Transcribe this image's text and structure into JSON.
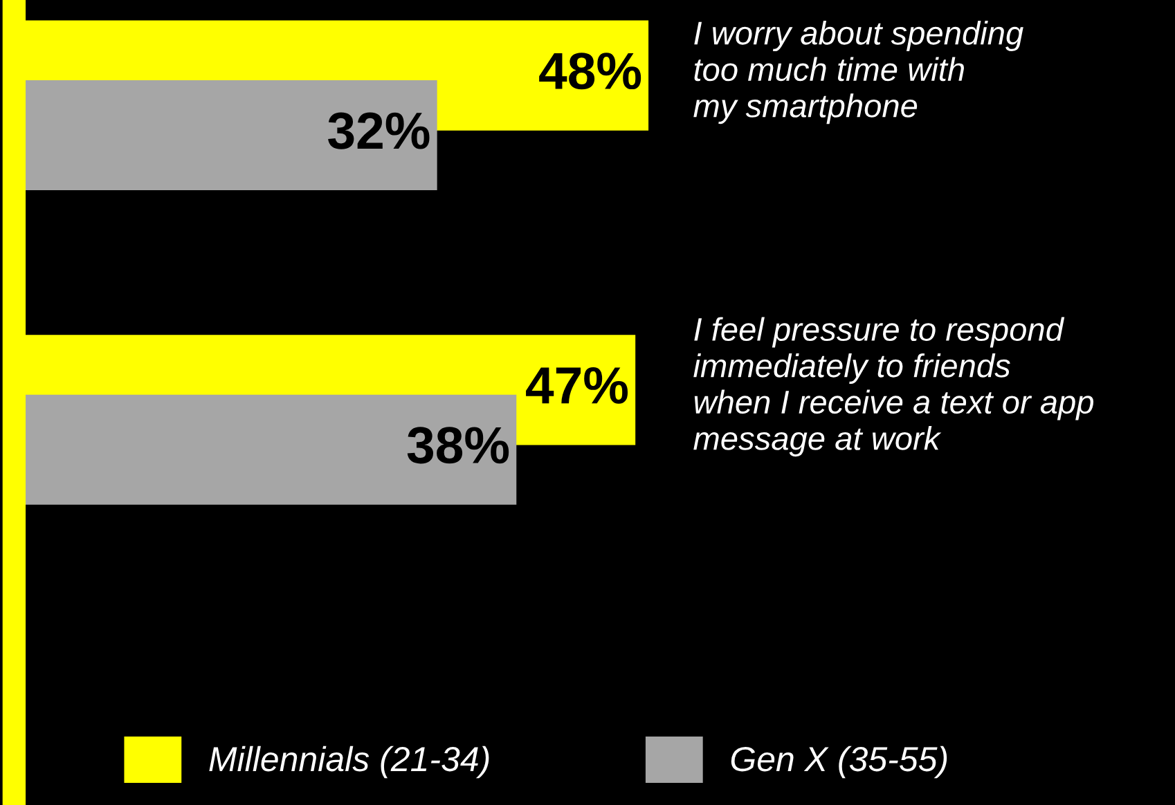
{
  "chart_data": {
    "type": "bar",
    "orientation": "horizontal",
    "categories": [
      "I worry about spending\ntoo much time with\nmy smartphone",
      "I feel pressure to respond\nimmediately to friends\nwhen I receive a text or app\nmessage at work"
    ],
    "series": [
      {
        "name": "Millennials (21-34)",
        "color": "#ffff00",
        "values": [
          48,
          47
        ],
        "value_labels": [
          "48%",
          "47%"
        ]
      },
      {
        "name": "Gen X (35-55)",
        "color": "#a6a6a6",
        "values": [
          32,
          38
        ],
        "value_labels": [
          "32%",
          "38%"
        ]
      }
    ],
    "legend": "bottom"
  }
}
